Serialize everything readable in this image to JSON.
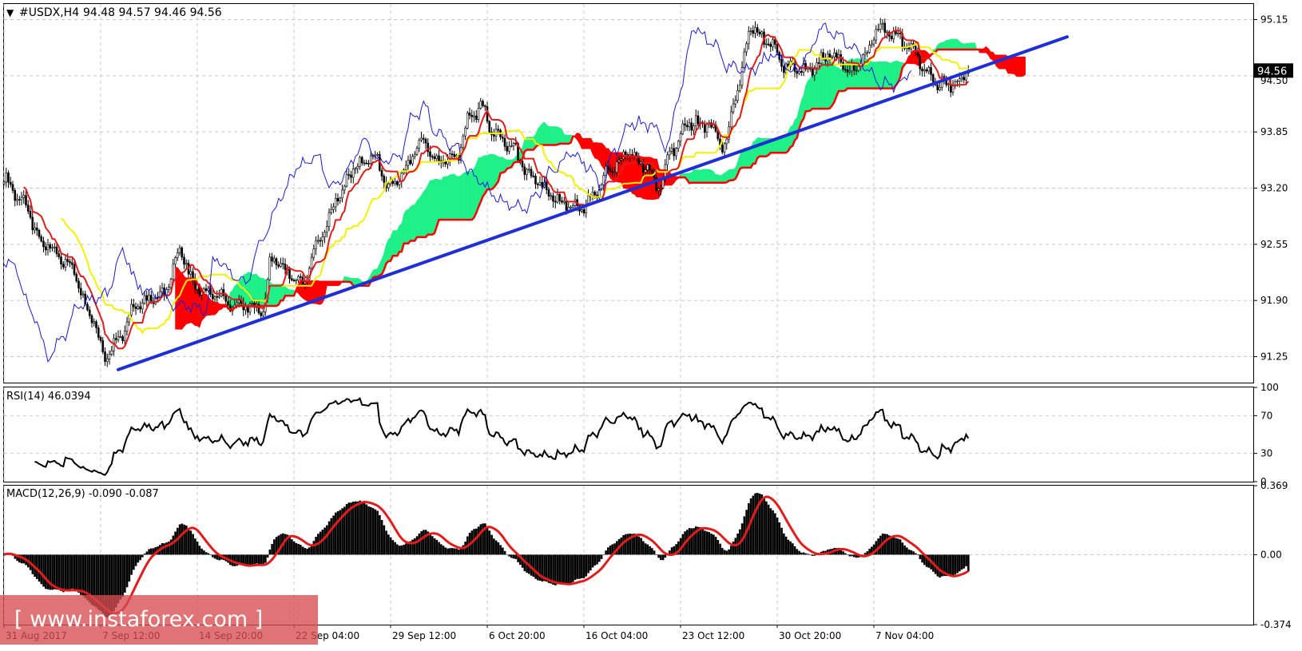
{
  "header": {
    "symbol": "#USDX,H4",
    "ohlc": "94.48 94.57 94.46 94.56"
  },
  "watermark": "[ www.instaforex.com ]",
  "colors": {
    "background": "#ffffff",
    "bull_candle": "#ffffff",
    "bear_candle": "#000000",
    "trendline": "#1f2fd8",
    "tenkan": "#e51b1b",
    "kijun": "#f4f000",
    "chikou": "#1a1ae0",
    "cloud_bull": "#1ff088",
    "cloud_bear": "#ff0000",
    "rsi_line": "#000000",
    "macd_hist": "#000000",
    "macd_signal": "#e51b1b",
    "grid": "#c8c8c8",
    "price_tag_bg": "#000000",
    "price_tag_text": "#ffffff"
  },
  "chart_data": [
    {
      "type": "candlestick",
      "panel": "price",
      "ylim": [
        90.95,
        95.33
      ],
      "ytick_labels": [
        "95.15",
        "93.85",
        "93.20",
        "92.55",
        "91.90",
        "91.25"
      ],
      "ytick_values": [
        95.15,
        93.85,
        93.2,
        92.55,
        91.9,
        91.25
      ],
      "partial_tick_label": "94.50",
      "partial_tick_value": 94.5,
      "current_price_label": "94.56",
      "current_price": 94.56,
      "x_labels": [
        "31 Aug 2017",
        "7 Sep 12:00",
        "14 Sep 20:00",
        "22 Sep 04:00",
        "29 Sep 12:00",
        "6 Oct 20:00",
        "16 Oct 04:00",
        "23 Oct 12:00",
        "30 Oct 20:00",
        "7 Nov 04:00"
      ],
      "x_label_bar_index": [
        0,
        44,
        88,
        132,
        176,
        220,
        264,
        308,
        352,
        396
      ],
      "bar_count": 440,
      "anchors": [
        [
          0,
          93.3
        ],
        [
          8,
          93.05
        ],
        [
          18,
          92.55
        ],
        [
          30,
          92.3
        ],
        [
          40,
          91.7
        ],
        [
          46,
          91.25
        ],
        [
          52,
          91.45
        ],
        [
          60,
          91.85
        ],
        [
          72,
          91.95
        ],
        [
          80,
          92.45
        ],
        [
          88,
          92.05
        ],
        [
          96,
          91.95
        ],
        [
          106,
          91.85
        ],
        [
          118,
          91.8
        ],
        [
          122,
          92.4
        ],
        [
          128,
          92.25
        ],
        [
          135,
          92.1
        ],
        [
          145,
          92.65
        ],
        [
          152,
          93.1
        ],
        [
          160,
          93.45
        ],
        [
          168,
          93.55
        ],
        [
          176,
          93.2
        ],
        [
          182,
          93.4
        ],
        [
          190,
          93.75
        ],
        [
          198,
          93.5
        ],
        [
          206,
          93.55
        ],
        [
          212,
          94.05
        ],
        [
          218,
          94.15
        ],
        [
          222,
          93.85
        ],
        [
          230,
          93.7
        ],
        [
          240,
          93.35
        ],
        [
          248,
          93.15
        ],
        [
          256,
          93.0
        ],
        [
          262,
          92.95
        ],
        [
          268,
          93.1
        ],
        [
          276,
          93.4
        ],
        [
          284,
          93.6
        ],
        [
          292,
          93.45
        ],
        [
          298,
          93.2
        ],
        [
          304,
          93.65
        ],
        [
          312,
          93.95
        ],
        [
          320,
          93.95
        ],
        [
          328,
          93.7
        ],
        [
          334,
          94.35
        ],
        [
          340,
          95.05
        ],
        [
          348,
          94.9
        ],
        [
          356,
          94.6
        ],
        [
          366,
          94.55
        ],
        [
          376,
          94.75
        ],
        [
          386,
          94.55
        ],
        [
          392,
          94.75
        ],
        [
          398,
          95.05
        ],
        [
          406,
          94.95
        ],
        [
          414,
          94.8
        ],
        [
          420,
          94.55
        ],
        [
          426,
          94.4
        ],
        [
          434,
          94.4
        ],
        [
          439,
          94.56
        ]
      ],
      "trendline": {
        "from": {
          "bar": 52,
          "price": 91.1
        },
        "to": {
          "bar": 484,
          "price": 94.95
        }
      },
      "ichimoku": {
        "tenkan_period": 9,
        "kijun_period": 26,
        "senkou_b_period": 52,
        "displacement": 26
      }
    },
    {
      "type": "line",
      "panel": "rsi",
      "label": "RSI(14) 46.0394",
      "period": 14,
      "ylim": [
        0,
        100
      ],
      "ytick_labels": [
        "100",
        "70",
        "30",
        "0"
      ],
      "ytick_values": [
        100,
        70,
        30,
        0
      ],
      "level_lines": [
        70,
        30
      ],
      "last_value": 46.0394
    },
    {
      "type": "macd",
      "panel": "macd",
      "label": "MACD(12,26,9) -0.090 -0.087",
      "fast": 12,
      "slow": 26,
      "signal": 9,
      "ylim": [
        -0.374,
        0.369
      ],
      "ytick_labels": [
        "0.369",
        "0.00",
        "-0.374"
      ],
      "ytick_values": [
        0.369,
        0.0,
        -0.374
      ],
      "last_macd": -0.09,
      "last_signal": -0.087
    }
  ]
}
